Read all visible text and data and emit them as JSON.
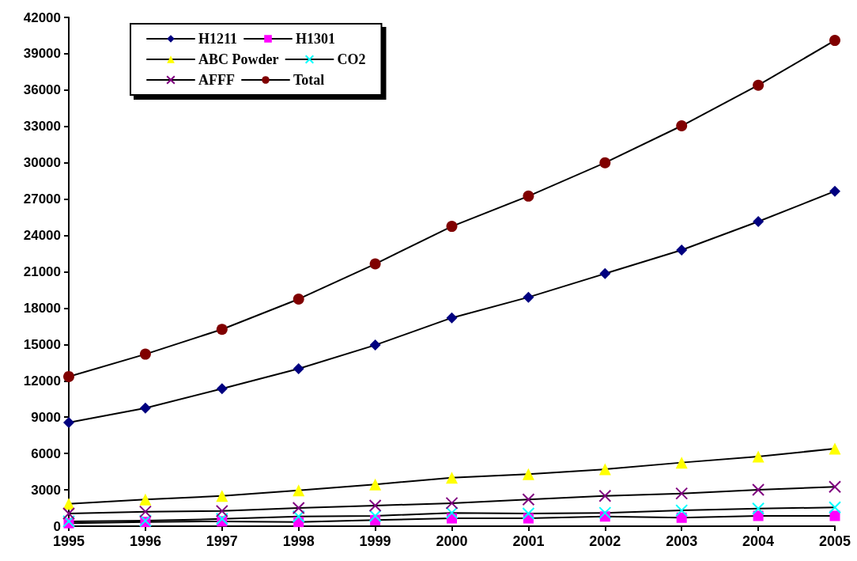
{
  "chart_data": {
    "type": "line",
    "categories": [
      "1995",
      "1996",
      "1997",
      "1998",
      "1999",
      "2000",
      "2001",
      "2002",
      "2003",
      "2004",
      "2005"
    ],
    "series": [
      {
        "name": "H1211",
        "color": "#000080",
        "marker": "diamond",
        "values": [
          8550,
          9750,
          11350,
          13000,
          14950,
          17200,
          18900,
          20850,
          22800,
          25150,
          27650
        ]
      },
      {
        "name": "H1301",
        "color": "#ff00ff",
        "marker": "square",
        "values": [
          250,
          350,
          400,
          350,
          500,
          650,
          650,
          800,
          700,
          850,
          850
        ]
      },
      {
        "name": "ABC Powder",
        "color": "#ffff00",
        "marker": "triangle",
        "values": [
          1850,
          2200,
          2500,
          2950,
          3450,
          4000,
          4300,
          4700,
          5250,
          5750,
          6400
        ]
      },
      {
        "name": "CO2",
        "color": "#00ffff",
        "marker": "cross",
        "values": [
          400,
          450,
          600,
          800,
          850,
          1100,
          1050,
          1100,
          1300,
          1450,
          1550
        ]
      },
      {
        "name": "AFFF",
        "color": "#800080",
        "marker": "cross",
        "values": [
          1050,
          1200,
          1250,
          1500,
          1700,
          1900,
          2200,
          2500,
          2700,
          3000,
          3250
        ]
      },
      {
        "name": "Total",
        "color": "#800000",
        "marker": "circle",
        "values": [
          12350,
          14200,
          16250,
          18750,
          21650,
          24750,
          27250,
          30000,
          33050,
          36400,
          40100
        ]
      }
    ],
    "ylim": [
      0,
      42000
    ],
    "yticks": [
      0,
      3000,
      6000,
      9000,
      12000,
      15000,
      18000,
      21000,
      24000,
      27000,
      30000,
      33000,
      36000,
      39000,
      42000
    ],
    "grid": false,
    "legend": "top left",
    "line_style": "solid"
  }
}
